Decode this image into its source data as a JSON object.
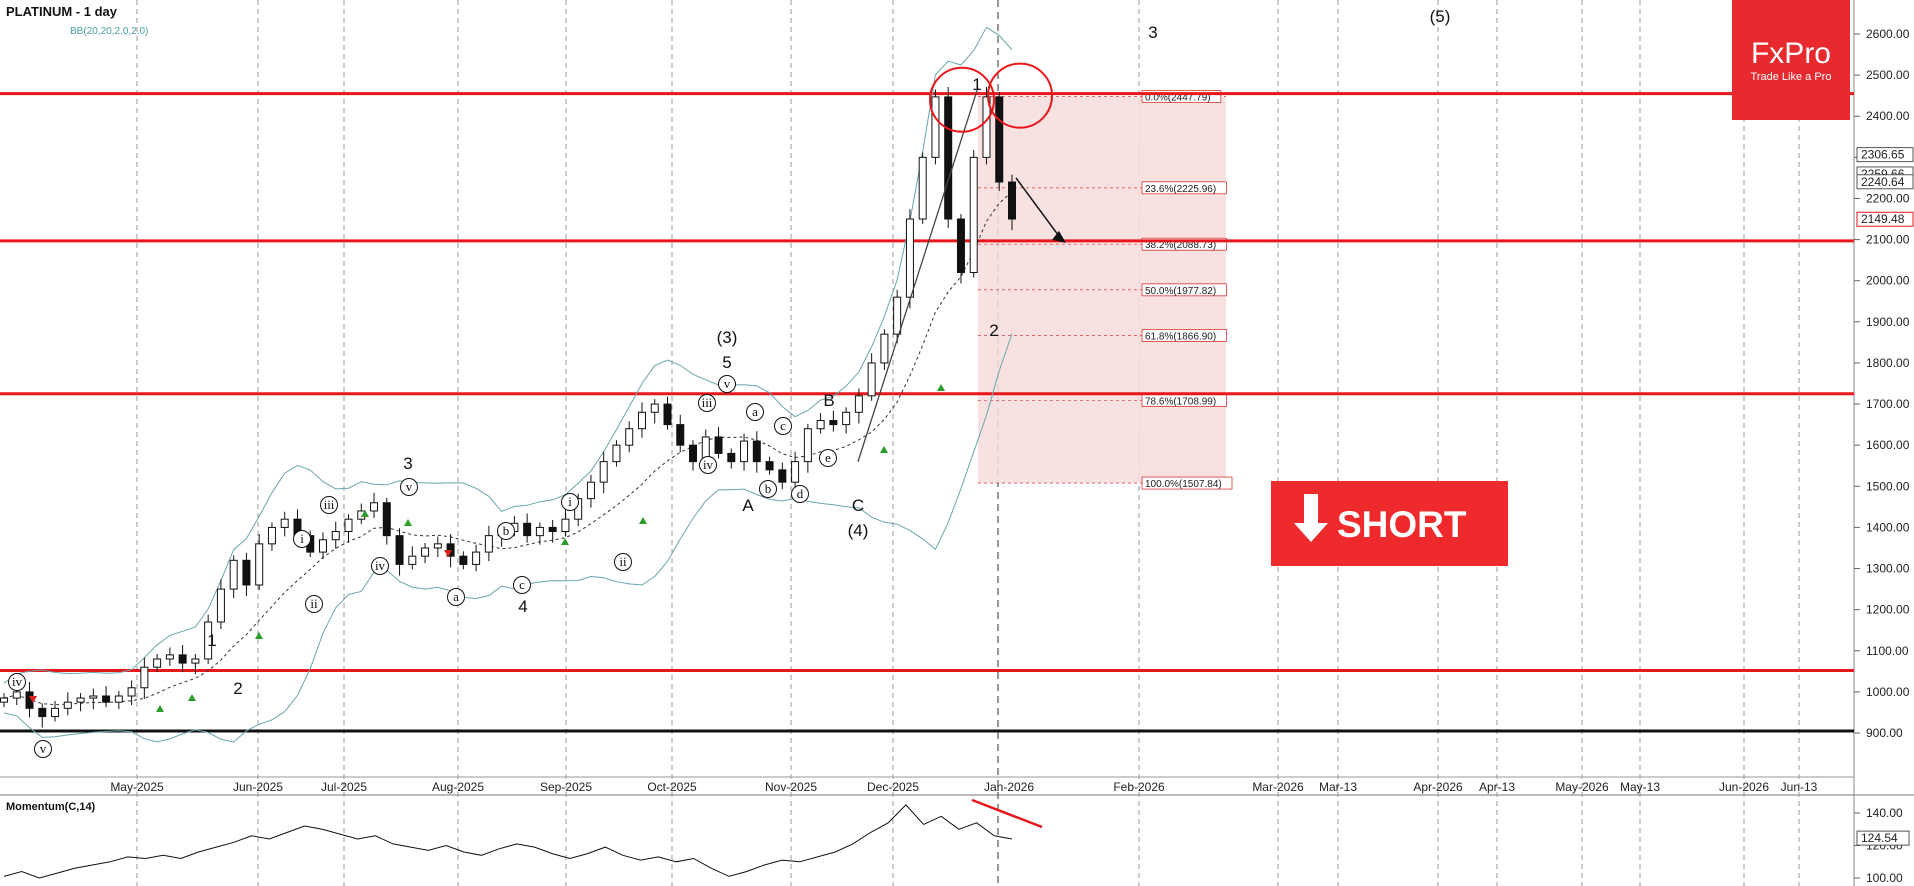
{
  "header": {
    "title": "PLATINUM - 1 day",
    "indicator": "BB(20,20,2.0,2.0)"
  },
  "brand": {
    "logo_text": "FxPro",
    "tagline": "Trade Like a Pro",
    "color": "#e8292d"
  },
  "signal": {
    "label": "SHORT",
    "color": "#ee2a2d"
  },
  "colors": {
    "hline": "#e8171b",
    "bollinger": "#6aa6ad",
    "fib_zone": "#f6dcdc",
    "candle": "#111111"
  },
  "chart_data": [
    {
      "type": "candlestick",
      "yaxis": {
        "ticks": [
          900,
          1000,
          1100,
          1200,
          1300,
          1400,
          1500,
          1600,
          1700,
          1800,
          1900,
          2000,
          2100,
          2200,
          2300,
          2400,
          2500,
          2600
        ],
        "range": [
          820,
          2700
        ]
      },
      "xaxis": {
        "labels": [
          "May-2025",
          "Jun-2025",
          "Jul-2025",
          "Aug-2025",
          "Sep-2025",
          "Oct-2025",
          "Nov-2025",
          "Dec-2025",
          "Jan-2026",
          "Feb-2026",
          "Mar-2026",
          "Mar-13",
          "Apr-2026",
          "Apr-13",
          "May-2026",
          "May-13",
          "Jun-2026",
          "Jun-13"
        ]
      },
      "price_labels": [
        "2306.65",
        "2259.66",
        "2240.64",
        "2149.48"
      ],
      "horizontal_levels": [
        2455,
        2097,
        1725,
        1052,
        905
      ],
      "fibonacci": [
        {
          "label": "0.0%(2447.79)",
          "value": 2447.79
        },
        {
          "label": "23.6%(2225.96)",
          "value": 2225.96
        },
        {
          "label": "38.2%(2088.73)",
          "value": 2088.73
        },
        {
          "label": "50.0%(1977.82)",
          "value": 1977.82
        },
        {
          "label": "61.8%(1866.90)",
          "value": 1866.9
        },
        {
          "label": "78.6%(1708.99)",
          "value": 1708.99
        },
        {
          "label": "100.0%(1507.84)",
          "value": 1507.84
        }
      ],
      "wave_labels": [
        "1",
        "2",
        "3",
        "4",
        "5",
        "(3)",
        "(4)",
        "(5)",
        "A",
        "B",
        "C",
        "1",
        "2",
        "3"
      ],
      "circled_wave_labels": [
        "iv",
        "v",
        "i",
        "ii",
        "iii",
        "iv",
        "v",
        "a",
        "b",
        "c",
        "i",
        "ii",
        "iii",
        "iv",
        "v",
        "a",
        "b",
        "c",
        "d",
        "e"
      ],
      "series": [
        {
          "name": "",
          "approx_close": [
            985,
            1000,
            960,
            940,
            960,
            975,
            985,
            990,
            975,
            990,
            1010,
            1060,
            1080,
            1090,
            1070,
            1080,
            1170,
            1250,
            1320,
            1260,
            1360,
            1400,
            1420,
            1380,
            1340,
            1370,
            1390,
            1420,
            1440,
            1460,
            1380,
            1310,
            1330,
            1350,
            1360,
            1330,
            1310,
            1340,
            1380,
            1390,
            1410,
            1380,
            1400,
            1390,
            1420,
            1470,
            1510,
            1560,
            1600,
            1640,
            1680,
            1700,
            1650,
            1600,
            1560,
            1620,
            1580,
            1560,
            1610,
            1560,
            1540,
            1510,
            1560,
            1640,
            1660,
            1650,
            1680,
            1720,
            1800,
            1870,
            1960,
            2150,
            2300,
            2447,
            2150,
            2020,
            2300,
            2447,
            2240,
            2150
          ]
        }
      ]
    },
    {
      "type": "line",
      "title": "Momentum(C,14)",
      "yaxis": {
        "ticks": [
          100,
          120,
          140
        ],
        "range": [
          95,
          150
        ]
      },
      "last_value_label": "124.54",
      "series": [
        {
          "name": "",
          "approx_values": [
            101,
            104,
            100,
            103,
            106,
            108,
            110,
            113,
            112,
            114,
            112,
            116,
            119,
            122,
            126,
            124,
            128,
            132,
            130,
            127,
            124,
            126,
            121,
            119,
            117,
            120,
            116,
            114,
            118,
            121,
            119,
            115,
            112,
            115,
            119,
            114,
            111,
            113,
            110,
            112,
            106,
            101,
            104,
            108,
            111,
            110,
            113,
            116,
            121,
            128,
            134,
            145,
            133,
            138,
            130,
            134,
            126,
            124
          ]
        }
      ]
    }
  ]
}
